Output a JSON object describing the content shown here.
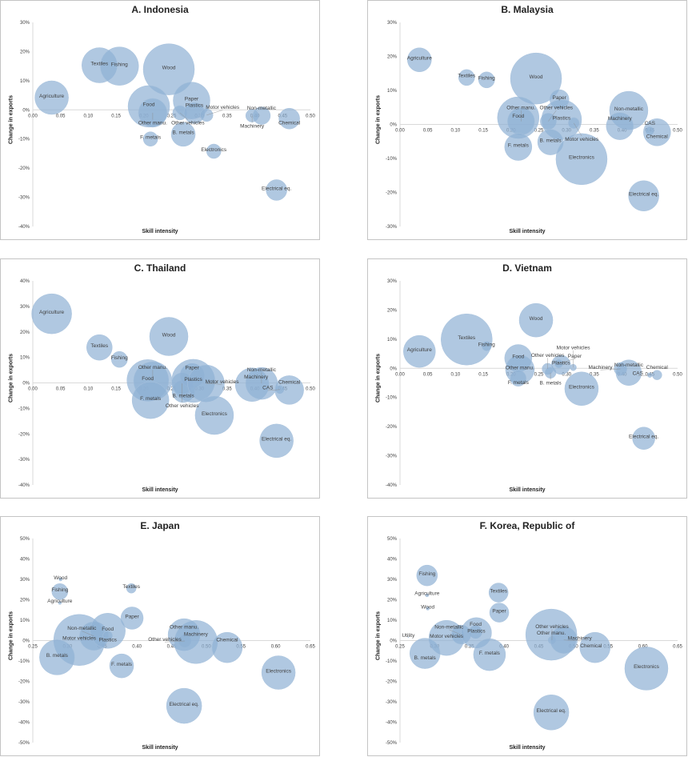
{
  "chart_data": [
    {
      "type": "scatter",
      "title": "A. Indonesia",
      "xlabel": "Skill intensity",
      "ylabel": "Change in exports",
      "xlim": [
        0.0,
        0.5
      ],
      "ylim": [
        -40,
        30
      ],
      "xticks": [
        "0.00",
        "0.05",
        "0.10",
        "0.15",
        "0.20",
        "0.25",
        "0.30",
        "0.35",
        "0.40",
        "0.45",
        "0.50"
      ],
      "yticks": [
        "30%",
        "20%",
        "10%",
        "0%",
        "-10%",
        "-20%",
        "-30%",
        "-40%"
      ],
      "points": [
        {
          "label": "Agriculture",
          "x": 0.034,
          "y": 4.2,
          "size": 441
        },
        {
          "label": "Textiles",
          "x": 0.12,
          "y": 15.3,
          "size": 484
        },
        {
          "label": "Fishing",
          "x": 0.156,
          "y": 15,
          "size": 576
        },
        {
          "label": "Wood",
          "x": 0.245,
          "y": 13.9,
          "size": 1024
        },
        {
          "label": "Food",
          "x": 0.209,
          "y": 1.2,
          "size": 676
        },
        {
          "label": "Other manu.",
          "x": 0.216,
          "y": -1,
          "size": 324
        },
        {
          "label": "Paper",
          "x": 0.286,
          "y": 3.2,
          "size": 529
        },
        {
          "label": "Other vehicles",
          "x": 0.265,
          "y": -1,
          "size": 81
        },
        {
          "label": "Plastics",
          "x": 0.291,
          "y": -1.1,
          "size": 169
        },
        {
          "label": "Motor vehicles",
          "x": 0.313,
          "y": -1.8,
          "size": 64
        },
        {
          "label": "F. metals",
          "x": 0.212,
          "y": -10,
          "size": 81
        },
        {
          "label": "B. metals",
          "x": 0.271,
          "y": -8.4,
          "size": 225
        },
        {
          "label": "Electronics",
          "x": 0.326,
          "y": -14.2,
          "size": 81
        },
        {
          "label": "Machinery",
          "x": 0.395,
          "y": -2,
          "size": 64
        },
        {
          "label": "Non-metallic",
          "x": 0.412,
          "y": -2,
          "size": 121
        },
        {
          "label": "Chemical",
          "x": 0.462,
          "y": -3,
          "size": 169
        },
        {
          "label": "Electrical eq.",
          "x": 0.439,
          "y": -27.5,
          "size": 169
        }
      ]
    },
    {
      "type": "scatter",
      "title": "B. Malaysia",
      "xlabel": "Skill intensity",
      "ylabel": "Change in exports",
      "xlim": [
        0.0,
        0.5
      ],
      "ylim": [
        -30,
        30
      ],
      "xticks": [
        "0.00",
        "0.05",
        "0.10",
        "0.15",
        "0.20",
        "0.25",
        "0.30",
        "0.35",
        "0.40",
        "0.45",
        "0.50"
      ],
      "yticks": [
        "30%",
        "20%",
        "10%",
        "0%",
        "-10%",
        "-20%",
        "-30%"
      ],
      "points": [
        {
          "label": "Agriculture",
          "x": 0.035,
          "y": 19,
          "size": 225
        },
        {
          "label": "Textiles",
          "x": 0.12,
          "y": 13.8,
          "size": 100
        },
        {
          "label": "Fishing",
          "x": 0.156,
          "y": 13.1,
          "size": 100
        },
        {
          "label": "Wood",
          "x": 0.245,
          "y": 13.5,
          "size": 1024
        },
        {
          "label": "Paper",
          "x": 0.287,
          "y": 7.4,
          "size": 144
        },
        {
          "label": "Food",
          "x": 0.213,
          "y": 2,
          "size": 676
        },
        {
          "label": "Other manu.",
          "x": 0.218,
          "y": 0.9,
          "size": 289
        },
        {
          "label": "Other vehicles",
          "x": 0.267,
          "y": 0.9,
          "size": 100
        },
        {
          "label": "Plastics",
          "x": 0.291,
          "y": 1.4,
          "size": 625
        },
        {
          "label": "Motor vehicles",
          "x": 0.313,
          "y": 0.4,
          "size": 49
        },
        {
          "label": "B. metals",
          "x": 0.271,
          "y": -5.2,
          "size": 256
        },
        {
          "label": "F. metals",
          "x": 0.213,
          "y": -6.6,
          "size": 289
        },
        {
          "label": "Electronics",
          "x": 0.327,
          "y": -10.2,
          "size": 1024
        },
        {
          "label": "Non-metallic",
          "x": 0.412,
          "y": 4.1,
          "size": 576
        },
        {
          "label": "Machinery",
          "x": 0.396,
          "y": -0.5,
          "size": 289
        },
        {
          "label": "CAS",
          "x": 0.45,
          "y": -1.9,
          "size": 25
        },
        {
          "label": "Chemical",
          "x": 0.463,
          "y": -2.3,
          "size": 289
        },
        {
          "label": "Electrical eq.",
          "x": 0.439,
          "y": -21,
          "size": 361
        }
      ]
    },
    {
      "type": "scatter",
      "title": "C. Thailand",
      "xlabel": "Skill intensity",
      "ylabel": "Change in exports",
      "xlim": [
        0.0,
        0.5
      ],
      "ylim": [
        -40,
        40
      ],
      "xticks": [
        "0.00",
        "0.05",
        "0.10",
        "0.15",
        "0.20",
        "0.25",
        "0.30",
        "0.35",
        "0.40",
        "0.45",
        "0.50"
      ],
      "yticks": [
        "40%",
        "30%",
        "20%",
        "10%",
        "0%",
        "-10%",
        "-20%",
        "-30%",
        "-40%"
      ],
      "points": [
        {
          "label": "Agriculture",
          "x": 0.034,
          "y": 27.1,
          "size": 625
        },
        {
          "label": "Textiles",
          "x": 0.12,
          "y": 13.9,
          "size": 256
        },
        {
          "label": "Fishing",
          "x": 0.156,
          "y": 9.2,
          "size": 100
        },
        {
          "label": "Wood",
          "x": 0.245,
          "y": 18.2,
          "size": 576
        },
        {
          "label": "Food",
          "x": 0.207,
          "y": 1,
          "size": 676
        },
        {
          "label": "Other manu.",
          "x": 0.216,
          "y": 0.8,
          "size": 576
        },
        {
          "label": "F. metals",
          "x": 0.212,
          "y": -6.8,
          "size": 529
        },
        {
          "label": "Other vehicles",
          "x": 0.269,
          "y": -0.2,
          "size": 169
        },
        {
          "label": "B. metals",
          "x": 0.271,
          "y": -3.3,
          "size": 196
        },
        {
          "label": "Paper",
          "x": 0.287,
          "y": 2.9,
          "size": 225
        },
        {
          "label": "Plastics",
          "x": 0.289,
          "y": 0.8,
          "size": 729
        },
        {
          "label": "Motor vehicles",
          "x": 0.312,
          "y": -0.2,
          "size": 529
        },
        {
          "label": "Electronics",
          "x": 0.327,
          "y": -12.7,
          "size": 576
        },
        {
          "label": "Machinery",
          "x": 0.395,
          "y": -0.7,
          "size": 441
        },
        {
          "label": "Non-metallic",
          "x": 0.412,
          "y": -0.2,
          "size": 400
        },
        {
          "label": "CAS",
          "x": 0.445,
          "y": -2.6,
          "size": 25
        },
        {
          "label": "Chemical",
          "x": 0.462,
          "y": -2.8,
          "size": 324
        },
        {
          "label": "Electrical eq.",
          "x": 0.439,
          "y": -22.7,
          "size": 441
        }
      ]
    },
    {
      "type": "scatter",
      "title": "D. Vietnam",
      "xlabel": "Skill intensity",
      "ylabel": "Change in exports",
      "xlim": [
        0.0,
        0.5
      ],
      "ylim": [
        -40,
        30
      ],
      "xticks": [
        "0.00",
        "0.05",
        "0.10",
        "0.15",
        "0.20",
        "0.25",
        "0.30",
        "0.35",
        "0.40",
        "0.45",
        "0.50"
      ],
      "yticks": [
        "30%",
        "20%",
        "10%",
        "0%",
        "-10%",
        "-20%",
        "-30%",
        "-40%"
      ],
      "points": [
        {
          "label": "Agriculture",
          "x": 0.035,
          "y": 5.8,
          "size": 400
        },
        {
          "label": "Textiles",
          "x": 0.12,
          "y": 9.9,
          "size": 1024
        },
        {
          "label": "Fishing",
          "x": 0.156,
          "y": 7.6,
          "size": 36
        },
        {
          "label": "Wood",
          "x": 0.245,
          "y": 16.5,
          "size": 441
        },
        {
          "label": "Food",
          "x": 0.213,
          "y": 3.5,
          "size": 289
        },
        {
          "label": "Other manu.",
          "x": 0.216,
          "y": -0.4,
          "size": 324
        },
        {
          "label": "F. metals",
          "x": 0.213,
          "y": -3.4,
          "size": 100
        },
        {
          "label": "Other vehicles",
          "x": 0.266,
          "y": -0.2,
          "size": 49
        },
        {
          "label": "B. metals",
          "x": 0.271,
          "y": -1.5,
          "size": 49
        },
        {
          "label": "Paper",
          "x": 0.286,
          "y": 1.6,
          "size": 25
        },
        {
          "label": "Plastics",
          "x": 0.29,
          "y": 1.2,
          "size": 144
        },
        {
          "label": "Motor vehicles",
          "x": 0.312,
          "y": 0.3,
          "size": 16
        },
        {
          "label": "Electronics",
          "x": 0.327,
          "y": -7,
          "size": 441
        },
        {
          "label": "Machinery",
          "x": 0.397,
          "y": -0.2,
          "size": 64
        },
        {
          "label": "Non-metallic",
          "x": 0.412,
          "y": -1.5,
          "size": 256
        },
        {
          "label": "CAS",
          "x": 0.45,
          "y": -2.3,
          "size": 9
        },
        {
          "label": "Chemical",
          "x": 0.463,
          "y": -2.3,
          "size": 36
        },
        {
          "label": "Electrical eq.",
          "x": 0.439,
          "y": -24,
          "size": 196
        }
      ]
    },
    {
      "type": "scatter",
      "title": "E. Japan",
      "xlabel": "Skill intensity",
      "ylabel": "Change in exports",
      "xlim": [
        0.25,
        0.65
      ],
      "ylim": [
        -50,
        50
      ],
      "xticks": [
        "0.25",
        "0.30",
        "0.35",
        "0.40",
        "0.45",
        "0.50",
        "0.55",
        "0.60",
        "0.65"
      ],
      "yticks": [
        "50%",
        "40%",
        "30%",
        "20%",
        "10%",
        "0%",
        "-10%",
        "-20%",
        "-30%",
        "-40%",
        "-50%"
      ],
      "points": [
        {
          "label": "Wood",
          "x": 0.29,
          "y": 30,
          "size": 4
        },
        {
          "label": "Fishing",
          "x": 0.289,
          "y": 24,
          "size": 100
        },
        {
          "label": "Agriculture",
          "x": 0.289,
          "y": 18.5,
          "size": 4
        },
        {
          "label": "Textiles",
          "x": 0.392,
          "y": 25.6,
          "size": 36
        },
        {
          "label": "Paper",
          "x": 0.393,
          "y": 11,
          "size": 196
        },
        {
          "label": "Motor vehicles",
          "x": 0.317,
          "y": 0.3,
          "size": 1024
        },
        {
          "label": "Non-metallic",
          "x": 0.338,
          "y": 2.2,
          "size": 324
        },
        {
          "label": "Food",
          "x": 0.358,
          "y": 4.8,
          "size": 484
        },
        {
          "label": "Plastics",
          "x": 0.358,
          "y": 2.4,
          "size": 36
        },
        {
          "label": "B. metals",
          "x": 0.285,
          "y": -8.2,
          "size": 484
        },
        {
          "label": "F. metals",
          "x": 0.378,
          "y": -12.4,
          "size": 225
        },
        {
          "label": "Other manu.",
          "x": 0.468,
          "y": 2.9,
          "size": 400
        },
        {
          "label": "Other vehicles",
          "x": 0.469,
          "y": -0.2,
          "size": 64
        },
        {
          "label": "Machinery",
          "x": 0.485,
          "y": -0.7,
          "size": 729
        },
        {
          "label": "Chemical",
          "x": 0.53,
          "y": -3.4,
          "size": 361
        },
        {
          "label": "Electronics",
          "x": 0.604,
          "y": -15.7,
          "size": 441
        },
        {
          "label": "Electrical eq.",
          "x": 0.468,
          "y": -32,
          "size": 484
        }
      ]
    },
    {
      "type": "scatter",
      "title": "F. Korea, Republic of",
      "xlabel": "Skill intensity",
      "ylabel": "Change in exports",
      "xlim": [
        0.25,
        0.65
      ],
      "ylim": [
        -50,
        50
      ],
      "xticks": [
        "0.25",
        "0.30",
        "0.35",
        "0.40",
        "0.45",
        "0.50",
        "0.55",
        "0.60",
        "0.65"
      ],
      "yticks": [
        "50%",
        "40%",
        "30%",
        "20%",
        "10%",
        "0%",
        "-10%",
        "-20%",
        "-30%",
        "-40%",
        "-50%"
      ],
      "points": [
        {
          "label": "Fishing",
          "x": 0.289,
          "y": 31.9,
          "size": 169
        },
        {
          "label": "Agriculture",
          "x": 0.289,
          "y": 22.2,
          "size": 4
        },
        {
          "label": "Wood",
          "x": 0.29,
          "y": 15.7,
          "size": 4
        },
        {
          "label": "Utility",
          "x": 0.262,
          "y": 1.6,
          "size": 0.25
        },
        {
          "label": "Textiles",
          "x": 0.392,
          "y": 23.5,
          "size": 144
        },
        {
          "label": "Paper",
          "x": 0.393,
          "y": 13.7,
          "size": 144
        },
        {
          "label": "Motor vehicles",
          "x": 0.317,
          "y": 1.3,
          "size": 484
        },
        {
          "label": "Non-metallic",
          "x": 0.338,
          "y": 2.9,
          "size": 144
        },
        {
          "label": "Food",
          "x": 0.359,
          "y": 4.2,
          "size": 64
        },
        {
          "label": "Plastics",
          "x": 0.36,
          "y": 3.8,
          "size": 361
        },
        {
          "label": "B. metals",
          "x": 0.286,
          "y": -6.3,
          "size": 361
        },
        {
          "label": "F. metals",
          "x": 0.379,
          "y": -6.9,
          "size": 400
        },
        {
          "label": "Other manu.",
          "x": 0.468,
          "y": 2.9,
          "size": 1024
        },
        {
          "label": "Other vehicles",
          "x": 0.469,
          "y": 0.2,
          "size": 25
        },
        {
          "label": "Machinery",
          "x": 0.486,
          "y": 0.3,
          "size": 289
        },
        {
          "label": "Chemical",
          "x": 0.531,
          "y": -3.4,
          "size": 361
        },
        {
          "label": "Electronics",
          "x": 0.605,
          "y": -13.7,
          "size": 729
        },
        {
          "label": "Electrical eq.",
          "x": 0.468,
          "y": -35.2,
          "size": 484
        }
      ]
    }
  ],
  "colors": {
    "bubble": "#8fb1d4",
    "bubble_stroke": "#a9c3de",
    "axis": "#d9d9d9",
    "text": "#404040"
  }
}
